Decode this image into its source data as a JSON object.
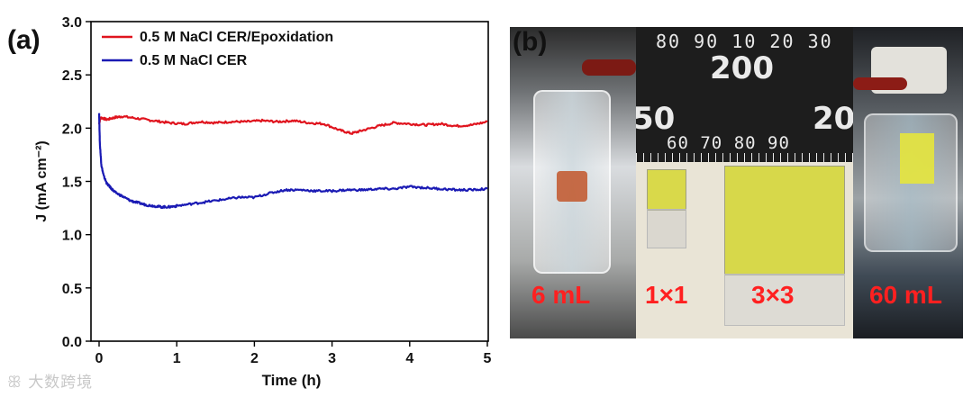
{
  "panel_a": {
    "label": "(a)"
  },
  "panel_b": {
    "label": "(b)",
    "photos": [
      {
        "caption": "6 mL"
      },
      {
        "caption_small": "1×1",
        "caption_large": "3×3"
      },
      {
        "caption": "60 mL"
      }
    ],
    "ruler_top_digits": [
      "80",
      "90",
      "10",
      "20",
      "30"
    ],
    "ruler_big_digits": [
      "200",
      "50",
      "20"
    ],
    "ruler_bottom_digits": [
      "60",
      "70",
      "80",
      "90"
    ]
  },
  "watermark": "大数跨境",
  "chart_data": {
    "type": "line",
    "xlabel": "Time (h)",
    "ylabel": "J (mA cm⁻²)",
    "xlim": [
      0,
      5
    ],
    "ylim": [
      0,
      3.0
    ],
    "xticks": [
      "0",
      "1",
      "2",
      "3",
      "4",
      "5"
    ],
    "yticks": [
      "0.0",
      "0.5",
      "1.0",
      "1.5",
      "2.0",
      "2.5",
      "3.0"
    ],
    "legend_position": "top-left",
    "series": [
      {
        "name": "0.5 M NaCl CER/Epoxidation",
        "color": "#e0141e",
        "x": [
          0,
          0.02,
          0.1,
          0.2,
          0.3,
          0.5,
          0.7,
          0.9,
          1.1,
          1.3,
          1.5,
          1.7,
          1.9,
          2.1,
          2.3,
          2.5,
          2.7,
          2.9,
          3.1,
          3.25,
          3.4,
          3.6,
          3.8,
          4.0,
          4.2,
          4.4,
          4.6,
          4.8,
          5.0
        ],
        "y": [
          2.04,
          2.1,
          2.08,
          2.1,
          2.11,
          2.09,
          2.07,
          2.05,
          2.04,
          2.06,
          2.05,
          2.06,
          2.06,
          2.07,
          2.06,
          2.07,
          2.05,
          2.04,
          1.98,
          1.95,
          1.98,
          2.02,
          2.05,
          2.04,
          2.03,
          2.04,
          2.02,
          2.03,
          2.06
        ]
      },
      {
        "name": "0.5 M NaCl CER",
        "color": "#1a1ab4",
        "x": [
          0,
          0.01,
          0.03,
          0.06,
          0.1,
          0.15,
          0.2,
          0.3,
          0.4,
          0.5,
          0.6,
          0.7,
          0.8,
          0.9,
          1.0,
          1.2,
          1.4,
          1.6,
          1.8,
          2.0,
          2.2,
          2.4,
          2.6,
          2.8,
          3.0,
          3.2,
          3.4,
          3.6,
          3.8,
          4.0,
          4.2,
          4.4,
          4.6,
          4.8,
          5.0
        ],
        "y": [
          2.15,
          1.85,
          1.65,
          1.55,
          1.48,
          1.44,
          1.4,
          1.36,
          1.32,
          1.3,
          1.28,
          1.27,
          1.26,
          1.26,
          1.27,
          1.29,
          1.31,
          1.33,
          1.35,
          1.35,
          1.39,
          1.42,
          1.42,
          1.41,
          1.41,
          1.42,
          1.42,
          1.43,
          1.43,
          1.45,
          1.44,
          1.43,
          1.42,
          1.42,
          1.43
        ]
      }
    ]
  }
}
